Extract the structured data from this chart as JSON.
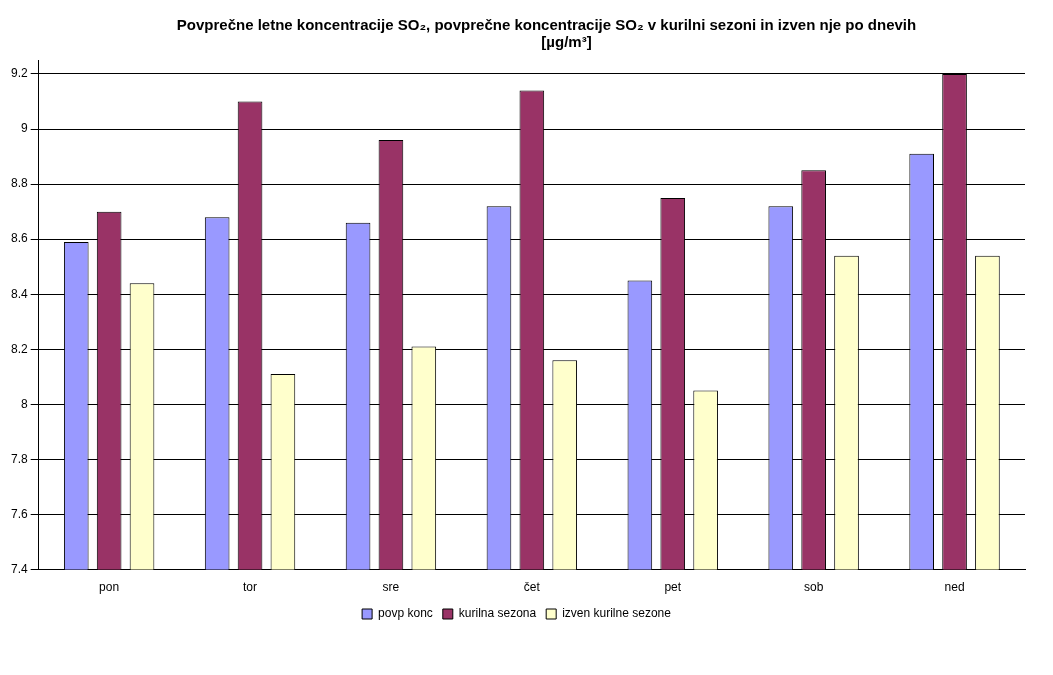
{
  "chart_data": {
    "type": "bar",
    "title": "Povprečne letne koncentracije SO₂, povprečne koncentracije SO₂ v kurilni sezoni in izven nje po dnevih",
    "subtitle": "[µg/m³]",
    "categories": [
      "pon",
      "tor",
      "sre",
      "čet",
      "pet",
      "sob",
      "ned"
    ],
    "series": [
      {
        "name": "povp konc",
        "color": "#9999ff",
        "values": [
          8.59,
          8.68,
          8.66,
          8.72,
          8.45,
          8.72,
          8.91
        ]
      },
      {
        "name": "kurilna sezona",
        "color": "#993366",
        "values": [
          8.7,
          9.1,
          8.96,
          9.14,
          8.75,
          8.85,
          9.2
        ]
      },
      {
        "name": "izven kurilne sezone",
        "color": "#ffffcc",
        "values": [
          8.44,
          8.11,
          8.21,
          8.16,
          8.05,
          8.54,
          8.54
        ]
      }
    ],
    "ylim": [
      7.4,
      9.25
    ],
    "yticks": [
      7.4,
      7.6,
      7.8,
      8,
      8.2,
      8.4,
      8.6,
      8.8,
      9,
      9.2
    ],
    "grid": "y",
    "legend": "bottom"
  }
}
